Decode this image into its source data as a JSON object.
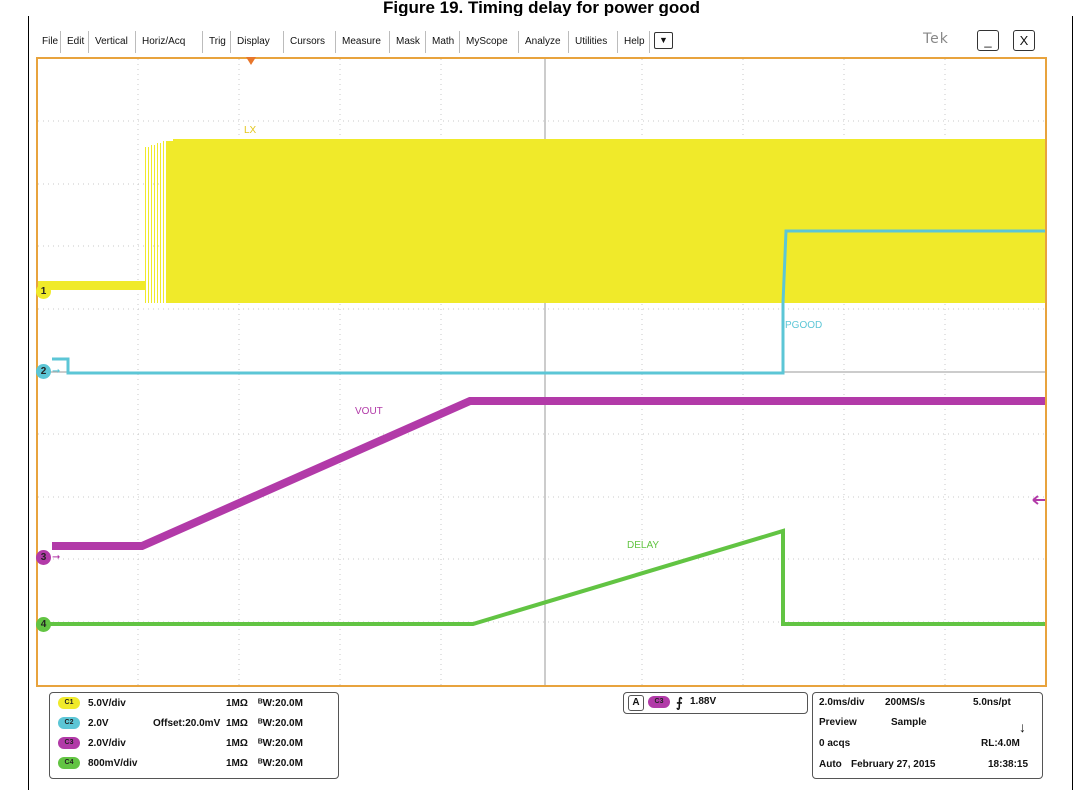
{
  "page_title": "Figure 19. Timing delay for power good",
  "menu": {
    "items": [
      "File",
      "Edit",
      "Vertical",
      "Horiz/Acq",
      "Trig",
      "Display",
      "Cursors",
      "Measure",
      "Mask",
      "Math",
      "MyScope",
      "Analyze",
      "Utilities",
      "Help"
    ],
    "dropdown_glyph": "▼",
    "logo": "Tek",
    "minimize_glyph": "_",
    "close_glyph": "X"
  },
  "channel_markers": [
    "1",
    "2",
    "3",
    "4"
  ],
  "waveform_labels": {
    "ch1": "LX",
    "ch2": "PGOOD",
    "ch3": "VOUT",
    "ch4": "DELAY"
  },
  "colors": {
    "ch1": "#f0ea2a",
    "ch2": "#5cc6d6",
    "ch3": "#b23aa8",
    "ch4": "#62c443",
    "graticule_border": "#e8a33d"
  },
  "channels": [
    {
      "badge": "C1",
      "scale": "5.0V/div",
      "offset": "",
      "coupling": "1MΩ",
      "bw": "ᴮW:20.0M"
    },
    {
      "badge": "C2",
      "scale": "2.0V",
      "offset": "Offset:20.0mV",
      "coupling": "1MΩ",
      "bw": "ᴮW:20.0M"
    },
    {
      "badge": "C3",
      "scale": "2.0V/div",
      "offset": "",
      "coupling": "1MΩ",
      "bw": "ᴮW:20.0M"
    },
    {
      "badge": "C4",
      "scale": "800mV/div",
      "offset": "",
      "coupling": "1MΩ",
      "bw": "ᴮW:20.0M"
    }
  ],
  "trigger": {
    "label": "A",
    "source": "C3",
    "slope_glyph": "⨍",
    "level": "1.88V"
  },
  "timebase": {
    "scale": "2.0ms/div",
    "sample_rate": "200MS/s",
    "resolution": "5.0ns/pt",
    "mode": "Preview",
    "acq_mode": "Sample",
    "acqs": "0 acqs",
    "record_length": "RL:4.0M",
    "trig_mode": "Auto",
    "date": "February 27, 2015",
    "time": "18:38:15",
    "run_glyph": "↓"
  }
}
